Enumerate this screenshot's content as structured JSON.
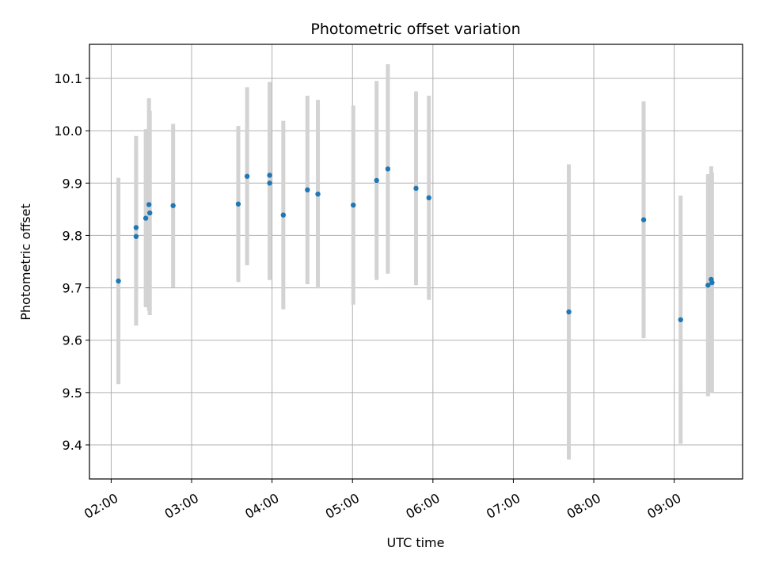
{
  "chart_data": {
    "type": "scatter",
    "title": "Photometric offset variation",
    "xlabel": "UTC time",
    "ylabel": "Photometric offset",
    "x_unit": "hours UTC",
    "xlim": [
      1.73,
      9.85
    ],
    "ylim": [
      9.335,
      10.165
    ],
    "grid": true,
    "x_ticks": [
      {
        "value": 2,
        "label": "02:00"
      },
      {
        "value": 3,
        "label": "03:00"
      },
      {
        "value": 4,
        "label": "04:00"
      },
      {
        "value": 5,
        "label": "05:00"
      },
      {
        "value": 6,
        "label": "06:00"
      },
      {
        "value": 7,
        "label": "07:00"
      },
      {
        "value": 8,
        "label": "08:00"
      },
      {
        "value": 9,
        "label": "09:00"
      }
    ],
    "y_ticks": [
      {
        "value": 9.4,
        "label": "9.4"
      },
      {
        "value": 9.5,
        "label": "9.5"
      },
      {
        "value": 9.6,
        "label": "9.6"
      },
      {
        "value": 9.7,
        "label": "9.7"
      },
      {
        "value": 9.8,
        "label": "9.8"
      },
      {
        "value": 9.9,
        "label": "9.9"
      },
      {
        "value": 10.0,
        "label": "10.0"
      },
      {
        "value": 10.1,
        "label": "10.1"
      }
    ],
    "point_color": "#1f77b4",
    "errorbar_color": "#d3d3d3",
    "points": [
      {
        "x": 2.09,
        "y": 9.713,
        "err": 0.197
      },
      {
        "x": 2.31,
        "y": 9.815,
        "err": 0.175
      },
      {
        "x": 2.31,
        "y": 9.798,
        "err": 0.17
      },
      {
        "x": 2.43,
        "y": 9.833,
        "err": 0.17
      },
      {
        "x": 2.47,
        "y": 9.859,
        "err": 0.203
      },
      {
        "x": 2.48,
        "y": 9.843,
        "err": 0.195
      },
      {
        "x": 2.77,
        "y": 9.857,
        "err": 0.156
      },
      {
        "x": 3.58,
        "y": 9.86,
        "err": 0.149
      },
      {
        "x": 3.69,
        "y": 9.913,
        "err": 0.17
      },
      {
        "x": 3.97,
        "y": 9.915,
        "err": 0.178
      },
      {
        "x": 3.97,
        "y": 9.9,
        "err": 0.185
      },
      {
        "x": 4.14,
        "y": 9.839,
        "err": 0.18
      },
      {
        "x": 4.44,
        "y": 9.887,
        "err": 0.18
      },
      {
        "x": 4.57,
        "y": 9.879,
        "err": 0.18
      },
      {
        "x": 5.01,
        "y": 9.858,
        "err": 0.19
      },
      {
        "x": 5.3,
        "y": 9.905,
        "err": 0.19
      },
      {
        "x": 5.44,
        "y": 9.927,
        "err": 0.2
      },
      {
        "x": 5.79,
        "y": 9.89,
        "err": 0.185
      },
      {
        "x": 5.95,
        "y": 9.872,
        "err": 0.195
      },
      {
        "x": 7.69,
        "y": 9.654,
        "err": 0.282
      },
      {
        "x": 8.62,
        "y": 9.83,
        "err": 0.226
      },
      {
        "x": 9.08,
        "y": 9.639,
        "err": 0.237
      },
      {
        "x": 9.42,
        "y": 9.705,
        "err": 0.212
      },
      {
        "x": 9.46,
        "y": 9.716,
        "err": 0.216
      },
      {
        "x": 9.47,
        "y": 9.71,
        "err": 0.21
      }
    ]
  }
}
